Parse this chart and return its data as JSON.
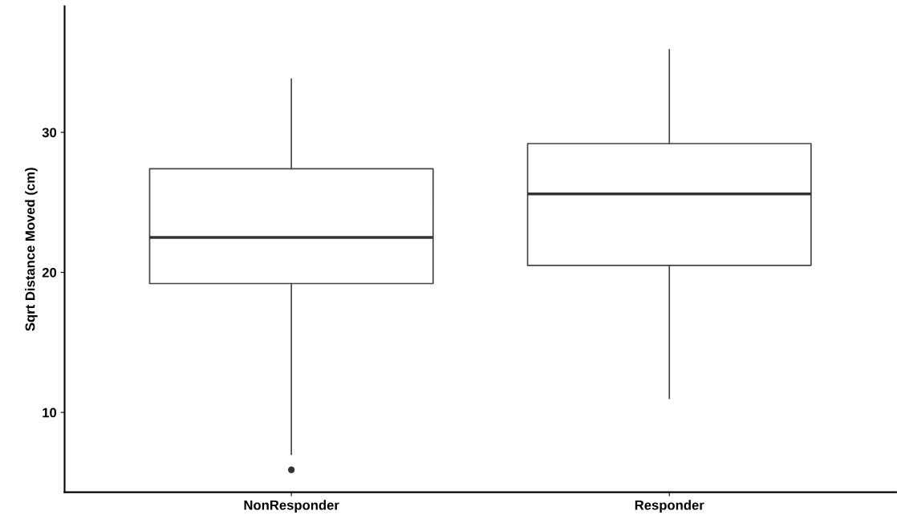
{
  "chart_data": {
    "type": "box",
    "ylabel": "Sqrt Distance Moved (cm)",
    "categories": [
      "NonResponder",
      "Responder"
    ],
    "boxes": [
      {
        "low": 7.0,
        "q1": 19.2,
        "median": 22.5,
        "q3": 27.4,
        "high": 33.8,
        "outliers": [
          5.9
        ]
      },
      {
        "low": 11.0,
        "q1": 20.5,
        "median": 25.6,
        "q3": 29.2,
        "high": 35.9
      }
    ],
    "color": "#444444",
    "ylim": [
      4.3,
      39
    ],
    "yticks": [
      10,
      20,
      30
    ],
    "grid": false,
    "legend": false
  }
}
